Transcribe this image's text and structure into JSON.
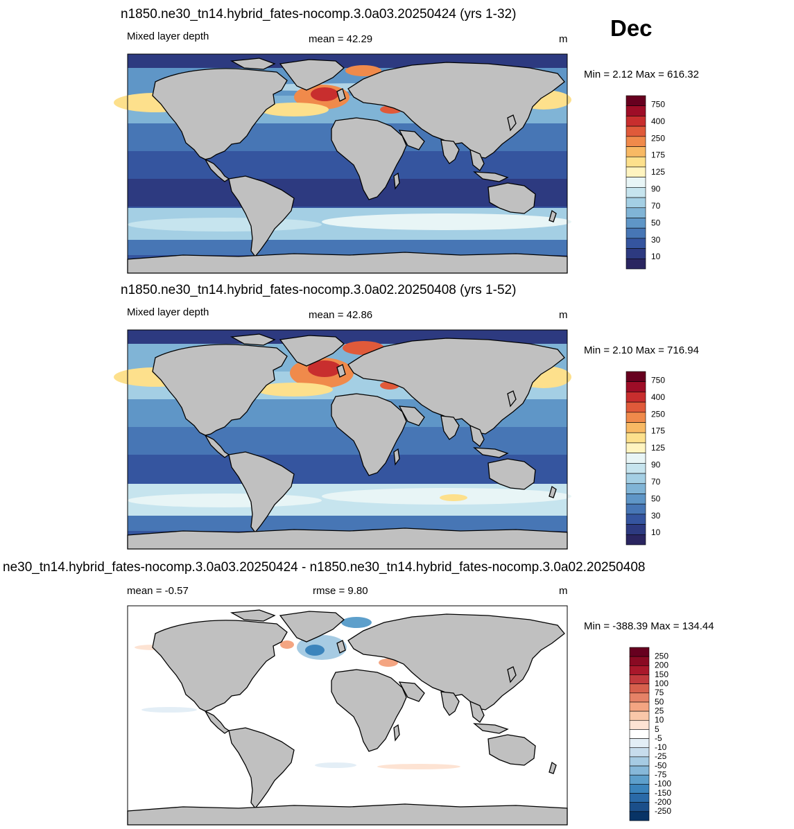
{
  "month": "Dec",
  "panels": [
    {
      "title": "n1850.ne30_tn14.hybrid_fates-nocomp.3.0a03.20250424 (yrs 1-32)",
      "left_label": "Mixed layer depth",
      "stat_text": "mean =  42.29",
      "units": "m",
      "minmax": "Min =   2.12 Max = 616.32",
      "colorbar": {
        "labels": [
          "750",
          "400",
          "250",
          "175",
          "125",
          "90",
          "70",
          "50",
          "30",
          "10"
        ],
        "colors": [
          "#67001f",
          "#9e0d27",
          "#c82e2e",
          "#e05a3a",
          "#f08a4b",
          "#f8b964",
          "#fde08c",
          "#fff4c0",
          "#e8f5f6",
          "#c6e4ee",
          "#a4cfe4",
          "#80b4d6",
          "#5f96c7",
          "#4776b5",
          "#35559f",
          "#2d3a80",
          "#2a2560"
        ]
      }
    },
    {
      "title": "n1850.ne30_tn14.hybrid_fates-nocomp.3.0a02.20250408 (yrs 1-52)",
      "left_label": "Mixed layer depth",
      "stat_text": "mean =  42.86",
      "units": "m",
      "minmax": "Min =   2.10 Max = 716.94",
      "colorbar": {
        "labels": [
          "750",
          "400",
          "250",
          "175",
          "125",
          "90",
          "70",
          "50",
          "30",
          "10"
        ],
        "colors": [
          "#67001f",
          "#9e0d27",
          "#c82e2e",
          "#e05a3a",
          "#f08a4b",
          "#f8b964",
          "#fde08c",
          "#fff4c0",
          "#e8f5f6",
          "#c6e4ee",
          "#a4cfe4",
          "#80b4d6",
          "#5f96c7",
          "#4776b5",
          "#35559f",
          "#2d3a80",
          "#2a2560"
        ]
      }
    },
    {
      "title": "ne30_tn14.hybrid_fates-nocomp.3.0a03.20250424 - n1850.ne30_tn14.hybrid_fates-nocomp.3.0a02.20250408",
      "left_label": "mean =  -0.57",
      "stat_text": "rmse =   9.80",
      "units": "m",
      "minmax": "Min = -388.39 Max = 134.44",
      "colorbar": {
        "labels": [
          "250",
          "200",
          "150",
          "100",
          "75",
          "50",
          "25",
          "10",
          "5",
          "-5",
          "-10",
          "-25",
          "-50",
          "-75",
          "-100",
          "-150",
          "-200",
          "-250"
        ],
        "colors": [
          "#67001f",
          "#8a0a23",
          "#a9182b",
          "#c13a3d",
          "#d6604d",
          "#e58267",
          "#f4a582",
          "#f9c7a9",
          "#fde3d3",
          "#ffffff",
          "#e3eef6",
          "#c7dcec",
          "#a6cbe3",
          "#86b8d9",
          "#5d9fcb",
          "#3b84bc",
          "#2a6aa8",
          "#1b4f8a",
          "#083466"
        ]
      }
    }
  ]
}
